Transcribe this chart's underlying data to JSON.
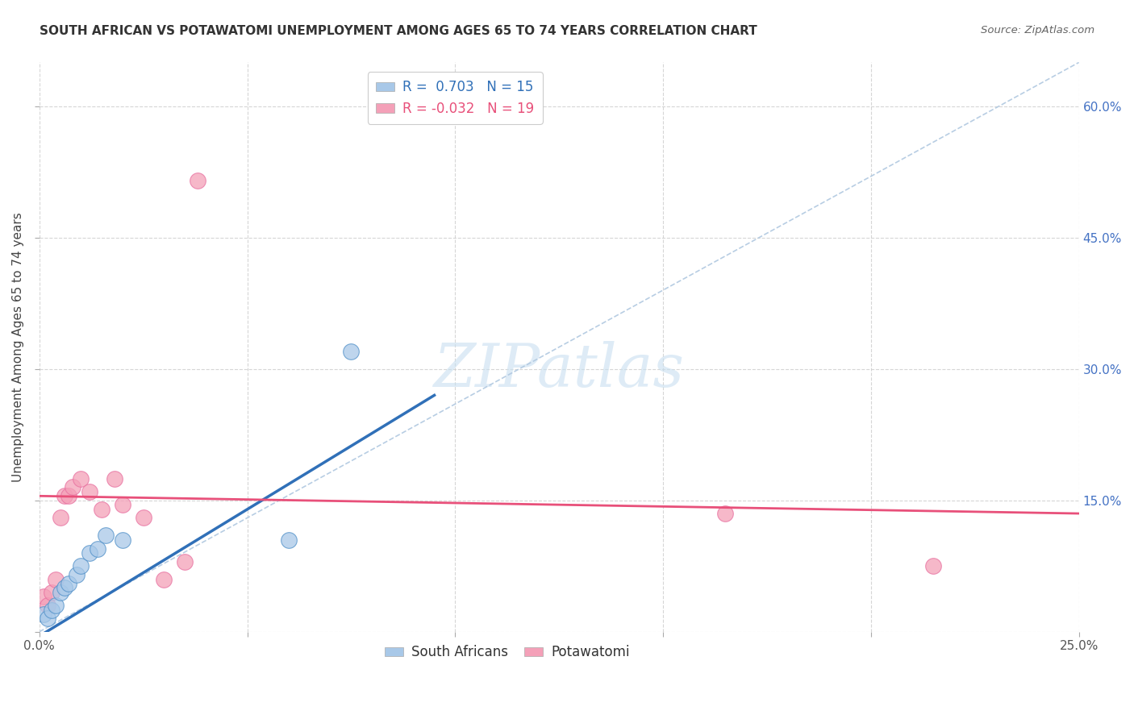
{
  "title": "SOUTH AFRICAN VS POTAWATOMI UNEMPLOYMENT AMONG AGES 65 TO 74 YEARS CORRELATION CHART",
  "source": "Source: ZipAtlas.com",
  "ylabel": "Unemployment Among Ages 65 to 74 years",
  "xlim": [
    0.0,
    0.25
  ],
  "ylim": [
    0.0,
    0.65
  ],
  "xticks": [
    0.0,
    0.05,
    0.1,
    0.15,
    0.2,
    0.25
  ],
  "yticks": [
    0.0,
    0.15,
    0.3,
    0.45,
    0.6
  ],
  "xticklabels": [
    "0.0%",
    "",
    "",
    "",
    "",
    "25.0%"
  ],
  "yticklabels_right": [
    "",
    "15.0%",
    "30.0%",
    "45.0%",
    "60.0%"
  ],
  "background_color": "#ffffff",
  "grid_color": "#cccccc",
  "blue_color": "#a8c8e8",
  "pink_color": "#f4a0b8",
  "blue_line_color": "#3070b8",
  "pink_line_color": "#e8507a",
  "blue_edge_color": "#5090c8",
  "pink_edge_color": "#e870a0",
  "south_african_x": [
    0.001,
    0.002,
    0.003,
    0.004,
    0.005,
    0.006,
    0.007,
    0.009,
    0.01,
    0.012,
    0.014,
    0.016,
    0.02,
    0.06,
    0.075
  ],
  "south_african_y": [
    0.02,
    0.015,
    0.025,
    0.03,
    0.045,
    0.05,
    0.055,
    0.065,
    0.075,
    0.09,
    0.095,
    0.11,
    0.105,
    0.105,
    0.32
  ],
  "potawatomi_x": [
    0.001,
    0.002,
    0.003,
    0.004,
    0.005,
    0.006,
    0.007,
    0.008,
    0.01,
    0.012,
    0.015,
    0.018,
    0.02,
    0.025,
    0.03,
    0.035,
    0.038,
    0.165,
    0.215
  ],
  "potawatomi_y": [
    0.04,
    0.03,
    0.045,
    0.06,
    0.13,
    0.155,
    0.155,
    0.165,
    0.175,
    0.16,
    0.14,
    0.175,
    0.145,
    0.13,
    0.06,
    0.08,
    0.515,
    0.135,
    0.075
  ],
  "blue_line_x0": 0.0,
  "blue_line_x1": 0.095,
  "blue_line_y0": -0.005,
  "blue_line_y1": 0.27,
  "pink_line_x0": 0.0,
  "pink_line_x1": 0.25,
  "pink_line_y0": 0.155,
  "pink_line_y1": 0.135,
  "diag_color": "#b0c8e0",
  "watermark_text": "ZIPatlas",
  "watermark_color": "#c8dff0",
  "right_tick_color": "#4472c4"
}
